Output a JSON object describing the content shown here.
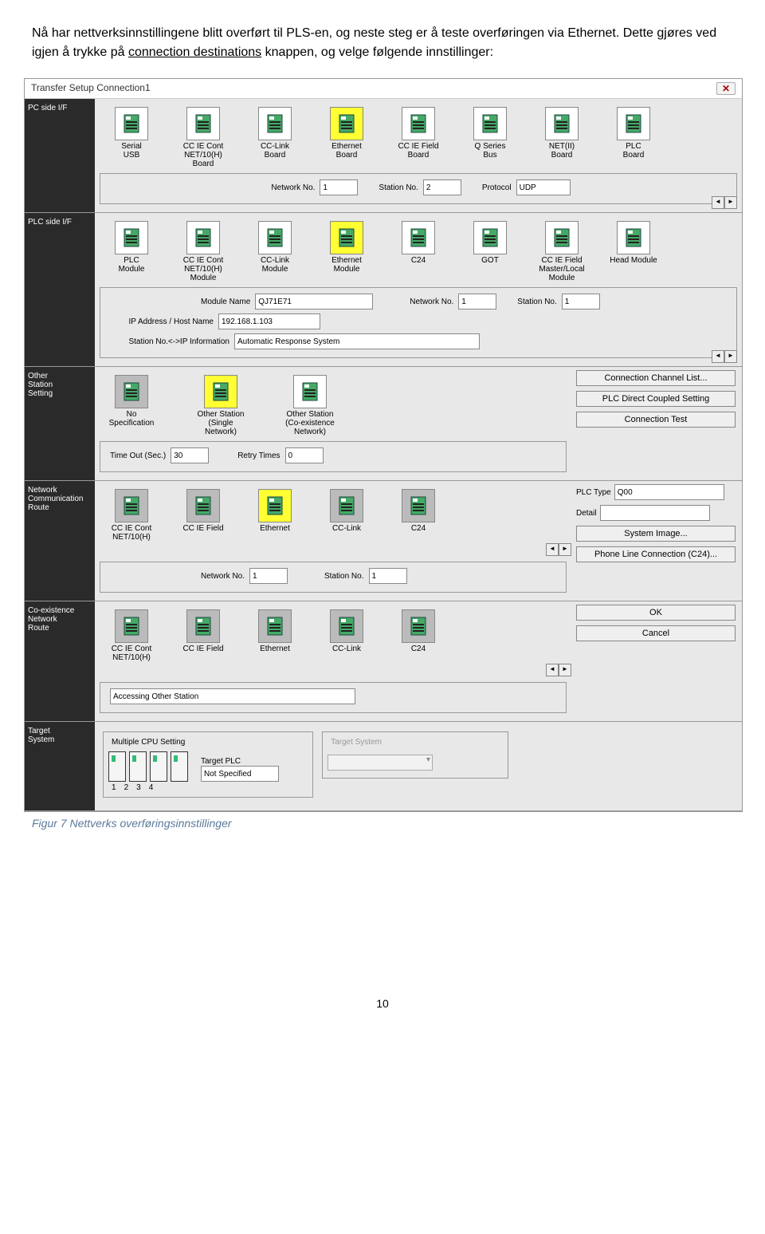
{
  "intro": {
    "p1_a": "Nå har nettverksinnstillingene blitt overført til PLS-en, og neste steg er å teste overføringen via Ethernet. Dette gjøres ved igjen å trykke på ",
    "p1_link": "connection destinations",
    "p1_b": " knappen, og velge følgende innstillinger:"
  },
  "window": {
    "title": "Transfer Setup Connection1",
    "close": "✕"
  },
  "pc_side": {
    "label": "PC side I/F",
    "items": [
      {
        "name": "serial-usb",
        "l1": "Serial",
        "l2": "USB"
      },
      {
        "name": "cc-ie-cont-net10h",
        "l1": "CC IE Cont",
        "l2": "NET/10(H)",
        "l3": "Board"
      },
      {
        "name": "cc-link-board",
        "l1": "CC-Link",
        "l2": "Board"
      },
      {
        "name": "ethernet-board",
        "l1": "Ethernet",
        "l2": "Board",
        "selected": true
      },
      {
        "name": "cc-ie-field-board",
        "l1": "CC IE Field",
        "l2": "Board"
      },
      {
        "name": "q-series-bus",
        "l1": "Q Series",
        "l2": "Bus"
      },
      {
        "name": "netii-board",
        "l1": "NET(II)",
        "l2": "Board"
      },
      {
        "name": "plc-board",
        "l1": "PLC",
        "l2": "Board"
      }
    ],
    "network_no_label": "Network No.",
    "network_no": "1",
    "station_no_label": "Station No.",
    "station_no": "2",
    "protocol_label": "Protocol",
    "protocol": "UDP"
  },
  "plc_side": {
    "label": "PLC side I/F",
    "items": [
      {
        "name": "plc-module",
        "l1": "PLC",
        "l2": "Module"
      },
      {
        "name": "cc-ie-cont-net10h-mod",
        "l1": "CC IE Cont",
        "l2": "NET/10(H)",
        "l3": "Module"
      },
      {
        "name": "cc-link-module",
        "l1": "CC-Link",
        "l2": "Module"
      },
      {
        "name": "ethernet-module",
        "l1": "Ethernet",
        "l2": "Module",
        "selected": true
      },
      {
        "name": "c24",
        "l1": "C24"
      },
      {
        "name": "got",
        "l1": "GOT"
      },
      {
        "name": "cc-ie-field-master",
        "l1": "CC IE Field",
        "l2": "Master/Local",
        "l3": "Module"
      },
      {
        "name": "head-module",
        "l1": "Head Module"
      }
    ],
    "module_name_label": "Module Name",
    "module_name": "QJ71E71",
    "network_no_label": "Network No.",
    "network_no": "1",
    "station_no_label": "Station No.",
    "station_no": "1",
    "ip_label": "IP Address / Host Name",
    "ip": "192.168.1.103",
    "station_ip_label": "Station No.<->IP Information",
    "station_ip": "Automatic Response System"
  },
  "other_station": {
    "label": "Other\nStation\nSetting",
    "items": [
      {
        "name": "no-specification",
        "l1": "No Specification",
        "gray": true
      },
      {
        "name": "other-station-single",
        "l1": "Other Station",
        "l2": "(Single Network)",
        "selected": true
      },
      {
        "name": "other-station-co",
        "l1": "Other Station",
        "l2": "(Co-existence Network)"
      }
    ],
    "timeout_label": "Time Out (Sec.)",
    "timeout": "30",
    "retry_label": "Retry Times",
    "retry": "0"
  },
  "net_comm": {
    "label": "Network\nCommunication\nRoute",
    "items": [
      {
        "name": "cc-ie-cont-net10h-r",
        "l1": "CC IE Cont",
        "l2": "NET/10(H)",
        "gray": true
      },
      {
        "name": "cc-ie-field-r",
        "l1": "CC IE Field",
        "gray": true
      },
      {
        "name": "ethernet-r",
        "l1": "Ethernet",
        "selected": true
      },
      {
        "name": "cc-link-r",
        "l1": "CC-Link",
        "gray": true
      },
      {
        "name": "c24-r",
        "l1": "C24",
        "gray": true
      }
    ],
    "network_no_label": "Network No.",
    "network_no": "1",
    "station_no_label": "Station No.",
    "station_no": "1"
  },
  "co_exist": {
    "label": "Co-existence\nNetwork\nRoute",
    "items": [
      {
        "name": "cc-ie-cont-net10h-c",
        "l1": "CC IE Cont",
        "l2": "NET/10(H)",
        "gray": true
      },
      {
        "name": "cc-ie-field-c",
        "l1": "CC IE Field",
        "gray": true
      },
      {
        "name": "ethernet-c",
        "l1": "Ethernet",
        "gray": true
      },
      {
        "name": "cc-link-c",
        "l1": "CC-Link",
        "gray": true
      },
      {
        "name": "c24-c",
        "l1": "C24",
        "gray": true
      }
    ],
    "accessing_label": "Accessing Other Station"
  },
  "right_buttons": {
    "channel_list": "Connection Channel List...",
    "direct": "PLC Direct Coupled Setting",
    "conn_test": "Connection Test",
    "plc_type_label": "PLC Type",
    "plc_type": "Q00",
    "detail_label": "Detail",
    "detail": "",
    "sys_image": "System Image...",
    "phone": "Phone Line Connection (C24)...",
    "ok": "OK",
    "cancel": "Cancel"
  },
  "target": {
    "label": "Target\nSystem",
    "mcpu_title": "Multiple CPU Setting",
    "target_plc_label": "Target PLC",
    "target_plc": "Not Specified",
    "nums": [
      "1",
      "2",
      "3",
      "4"
    ],
    "tsys_title": "Target System"
  },
  "figure_caption": "Figur 7 Nettverks overføringsinnstillinger",
  "page_number": "10"
}
